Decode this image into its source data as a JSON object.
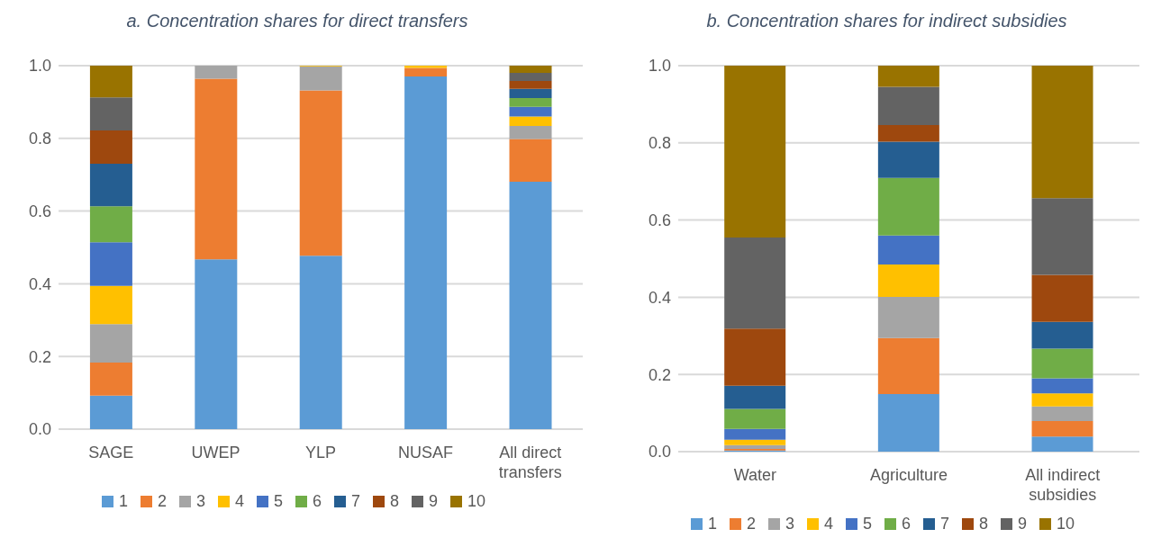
{
  "chart_data": [
    {
      "type": "bar",
      "title": "a. Concentration shares for direct transfers",
      "categories": [
        "SAGE",
        "UWEP",
        "YLP",
        "NUSAF",
        "All direct transfers"
      ],
      "stacked": true,
      "ylim": [
        0,
        1
      ],
      "yticks": [
        {
          "value": 0,
          "label": "0.0"
        },
        {
          "value": 0.2,
          "label": "0.2"
        },
        {
          "value": 0.4,
          "label": "0.4"
        },
        {
          "value": 0.6,
          "label": "0.6"
        },
        {
          "value": 0.8,
          "label": "0.8"
        },
        {
          "value": 1,
          "label": "1.0"
        }
      ],
      "grid": "y",
      "legend": "bottom",
      "series": [
        {
          "name": "1",
          "color": "#5b9bd5",
          "values": [
            0.092,
            0.467,
            0.477,
            0.97,
            0.681
          ]
        },
        {
          "name": "2",
          "color": "#ed7d31",
          "values": [
            0.091,
            0.497,
            0.455,
            0.024,
            0.117
          ]
        },
        {
          "name": "3",
          "color": "#a5a5a5",
          "values": [
            0.106,
            0.036,
            0.066,
            0,
            0.036
          ]
        },
        {
          "name": "4",
          "color": "#ffc000",
          "values": [
            0.105,
            0,
            0.003,
            0.006,
            0.026
          ]
        },
        {
          "name": "5",
          "color": "#4472c4",
          "values": [
            0.12,
            0,
            0,
            0,
            0.027
          ]
        },
        {
          "name": "6",
          "color": "#70ad47",
          "values": [
            0.099,
            0,
            0,
            0,
            0.024
          ]
        },
        {
          "name": "7",
          "color": "#255e91",
          "values": [
            0.117,
            0,
            0,
            0,
            0.025
          ]
        },
        {
          "name": "8",
          "color": "#9e480e",
          "values": [
            0.092,
            0,
            0,
            0,
            0.022
          ]
        },
        {
          "name": "9",
          "color": "#636363",
          "values": [
            0.091,
            0,
            0,
            0,
            0.022
          ]
        },
        {
          "name": "10",
          "color": "#997300",
          "values": [
            0.087,
            0,
            0,
            0,
            0.02
          ]
        }
      ]
    },
    {
      "type": "bar",
      "title": "b. Concentration shares for indirect subsidies",
      "categories": [
        "Water",
        "Agriculture",
        "All indirect subsidies"
      ],
      "stacked": true,
      "ylim": [
        0,
        1
      ],
      "yticks": [
        {
          "value": 0,
          "label": "0.0"
        },
        {
          "value": 0.2,
          "label": "0.2"
        },
        {
          "value": 0.4,
          "label": "0.4"
        },
        {
          "value": 0.6,
          "label": "0.6"
        },
        {
          "value": 0.8,
          "label": "0.8"
        },
        {
          "value": 1,
          "label": "1.0"
        }
      ],
      "grid": "y",
      "legend": "bottom",
      "series": [
        {
          "name": "1",
          "color": "#5b9bd5",
          "values": [
            0.003,
            0.149,
            0.039
          ]
        },
        {
          "name": "2",
          "color": "#ed7d31",
          "values": [
            0.004,
            0.145,
            0.04
          ]
        },
        {
          "name": "3",
          "color": "#a5a5a5",
          "values": [
            0.01,
            0.107,
            0.038
          ]
        },
        {
          "name": "4",
          "color": "#ffc000",
          "values": [
            0.014,
            0.084,
            0.034
          ]
        },
        {
          "name": "5",
          "color": "#4472c4",
          "values": [
            0.028,
            0.075,
            0.039
          ]
        },
        {
          "name": "6",
          "color": "#70ad47",
          "values": [
            0.052,
            0.149,
            0.077
          ]
        },
        {
          "name": "7",
          "color": "#255e91",
          "values": [
            0.06,
            0.094,
            0.069
          ]
        },
        {
          "name": "8",
          "color": "#9e480e",
          "values": [
            0.148,
            0.043,
            0.122
          ]
        },
        {
          "name": "9",
          "color": "#636363",
          "values": [
            0.236,
            0.099,
            0.199
          ]
        },
        {
          "name": "10",
          "color": "#997300",
          "values": [
            0.445,
            0.055,
            0.343
          ]
        }
      ]
    }
  ]
}
